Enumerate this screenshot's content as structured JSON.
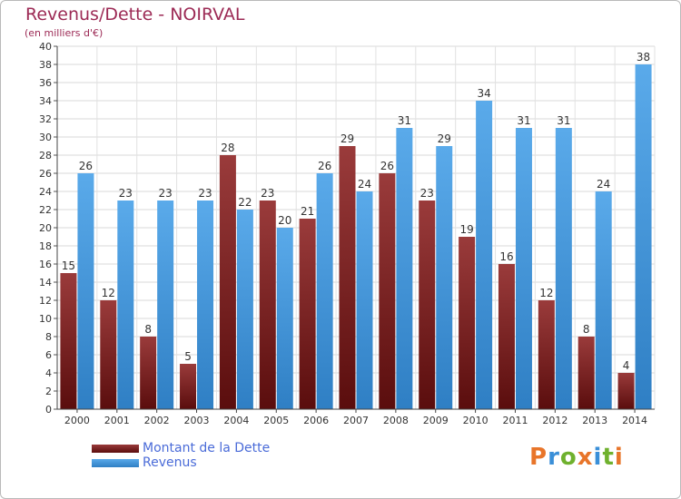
{
  "header": {
    "title": "Revenus/Dette - NOIRVAL",
    "subtitle": "(en milliers d'€)"
  },
  "legend": {
    "debt_label": "Montant de la Dette",
    "revenue_label": "Revenus"
  },
  "logo": {
    "text": "Proxiti",
    "letter_colors": [
      "#e8752a",
      "#3a8fd8",
      "#6fb12e",
      "#e8752a",
      "#3a8fd8",
      "#6fb12e",
      "#e8752a"
    ]
  },
  "colors": {
    "debt_top": "#9a3b3b",
    "debt_bottom": "#5a0d0d",
    "revenue_top": "#5aaaea",
    "revenue_bottom": "#2f7fc4",
    "title": "#9c2a55",
    "legend_text": "#4a6bd8"
  },
  "chart_data": {
    "type": "bar",
    "title": "Revenus/Dette - NOIRVAL",
    "subtitle": "(en milliers d'€)",
    "categories": [
      "2000",
      "2001",
      "2002",
      "2003",
      "2004",
      "2005",
      "2006",
      "2007",
      "2008",
      "2009",
      "2010",
      "2011",
      "2012",
      "2013",
      "2014"
    ],
    "series": [
      {
        "name": "Montant de la Dette",
        "values": [
          15,
          12,
          8,
          5,
          28,
          23,
          21,
          29,
          26,
          23,
          19,
          16,
          12,
          8,
          4
        ]
      },
      {
        "name": "Revenus",
        "values": [
          26,
          23,
          23,
          23,
          22,
          20,
          26,
          24,
          31,
          29,
          34,
          31,
          31,
          24,
          38
        ]
      }
    ],
    "ylim": [
      0,
      40
    ],
    "yticks": [
      0,
      2,
      4,
      6,
      8,
      10,
      12,
      14,
      16,
      18,
      20,
      22,
      24,
      26,
      28,
      30,
      32,
      34,
      36,
      38,
      40
    ],
    "grid": true,
    "legend_position": "bottom-left"
  }
}
